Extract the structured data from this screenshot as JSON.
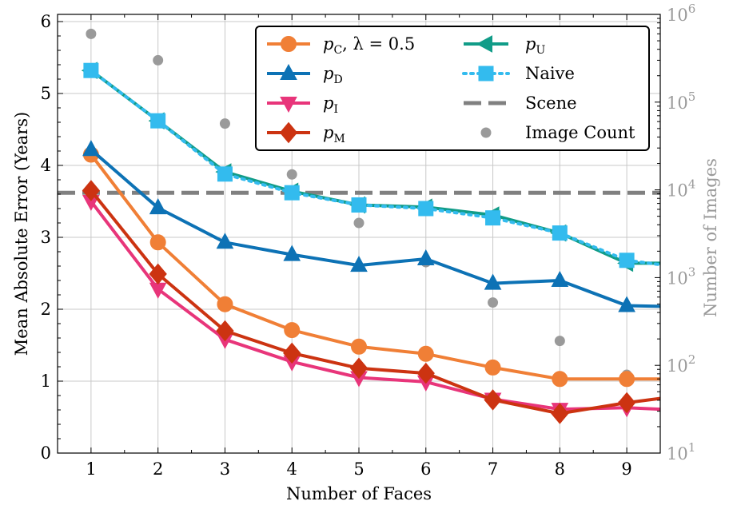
{
  "chart_data": {
    "type": "line",
    "x": [
      1,
      2,
      3,
      4,
      5,
      6,
      7,
      8,
      9,
      9.5
    ],
    "xlim": [
      0.5,
      9.5
    ],
    "ylim": [
      0,
      6.1
    ],
    "xticks": [
      "1",
      "2",
      "3",
      "4",
      "5",
      "6",
      "7",
      "8",
      "9"
    ],
    "yticks": [
      "0",
      "1",
      "2",
      "3",
      "4",
      "5",
      "6"
    ],
    "xlabel": "Number of Faces",
    "ylabel": "Mean Absolute Error (Years)",
    "ylabel_right": "Number of Images",
    "right_axis": {
      "scale": "log",
      "range": [
        10,
        1000000
      ],
      "ticks": [
        {
          "base": "10",
          "exp": "1"
        },
        {
          "base": "10",
          "exp": "2"
        },
        {
          "base": "10",
          "exp": "3"
        },
        {
          "base": "10",
          "exp": "4"
        },
        {
          "base": "10",
          "exp": "5"
        },
        {
          "base": "10",
          "exp": "6"
        }
      ]
    },
    "grid": true,
    "legend_position": "top-right",
    "series": [
      {
        "name": "p_C, λ = 0.5",
        "sym": "p",
        "sub": "C",
        "suffix": ", λ = 0.5",
        "color": "#F07F36",
        "marker": "circle",
        "dash": "",
        "values": [
          4.15,
          2.93,
          2.07,
          1.71,
          1.48,
          1.38,
          1.19,
          1.03,
          1.03,
          1.03
        ]
      },
      {
        "name": "p_D",
        "sym": "p",
        "sub": "D",
        "suffix": "",
        "color": "#0D72B5",
        "marker": "triangle-up",
        "dash": "",
        "values": [
          4.22,
          3.41,
          2.93,
          2.76,
          2.61,
          2.7,
          2.36,
          2.4,
          2.05,
          2.04
        ]
      },
      {
        "name": "p_I",
        "sym": "p",
        "sub": "I",
        "suffix": "",
        "color": "#E8357A",
        "marker": "triangle-down",
        "dash": "",
        "values": [
          3.5,
          2.28,
          1.58,
          1.27,
          1.05,
          0.99,
          0.75,
          0.61,
          0.63,
          0.61
        ]
      },
      {
        "name": "p_M",
        "sym": "p",
        "sub": "M",
        "suffix": "",
        "color": "#CC3311",
        "marker": "diamond",
        "dash": "",
        "values": [
          3.65,
          2.49,
          1.7,
          1.39,
          1.18,
          1.11,
          0.74,
          0.55,
          0.7,
          0.76
        ]
      },
      {
        "name": "p_U",
        "sym": "p",
        "sub": "U",
        "suffix": "",
        "color": "#119C88",
        "marker": "triangle-left",
        "dash": "",
        "values": [
          5.32,
          4.62,
          3.91,
          3.64,
          3.45,
          3.42,
          3.31,
          3.06,
          2.64,
          2.64
        ]
      },
      {
        "name": "Naive",
        "sym": "",
        "sub": "",
        "suffix": "",
        "label": "Naive",
        "color": "#33BBEE",
        "marker": "square",
        "dash": "dotted",
        "values": [
          5.32,
          4.62,
          3.88,
          3.62,
          3.45,
          3.4,
          3.27,
          3.06,
          2.68,
          2.62
        ]
      }
    ],
    "reference_line": {
      "name": "Scene",
      "value": 3.62,
      "color": "#808080"
    },
    "image_count": {
      "name": "Image Count",
      "color": "#9a9a9a",
      "x": [
        1,
        2,
        3,
        4,
        5,
        6,
        7,
        8,
        9
      ],
      "values": [
        600000,
        300000,
        57000,
        15000,
        4200,
        1500,
        520,
        190,
        78
      ]
    }
  }
}
